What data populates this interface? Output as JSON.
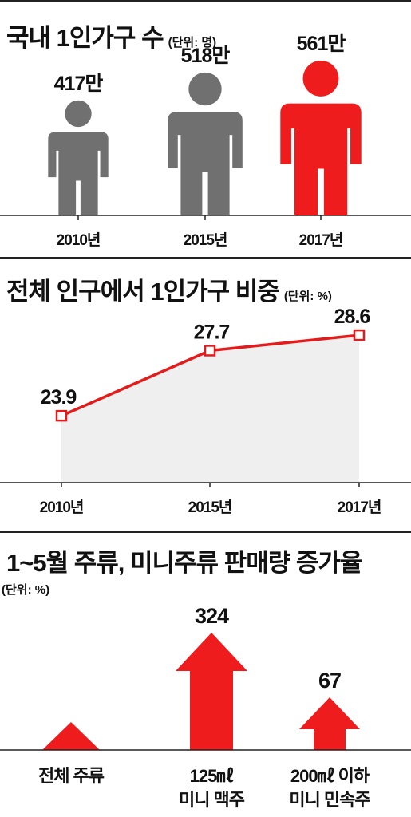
{
  "panels": {
    "households": {
      "title": "국내 1인가구 수",
      "unit": "(단위: 명)",
      "chart_data": {
        "type": "bar",
        "title": "국내 1인가구 수",
        "unit": "(단위: 명)",
        "categories": [
          "2010년",
          "2015년",
          "2017년"
        ],
        "value_labels": [
          "417만",
          "518만",
          "561만"
        ],
        "values": [
          4170000,
          5180000,
          5610000
        ],
        "colors": [
          "#707070",
          "#707070",
          "#ee1c1c"
        ]
      }
    },
    "ratio": {
      "title": "전체 인구에서 1인가구 비중",
      "unit": "(단위: %)",
      "chart_data": {
        "type": "area",
        "title": "전체 인구에서 1인가구 비중",
        "unit": "(단위: %)",
        "categories": [
          "2010년",
          "2015년",
          "2017년"
        ],
        "values": [
          23.9,
          27.7,
          28.6
        ],
        "ylim": [
          20,
          30
        ],
        "colors": {
          "line": "#e31b1b",
          "fill": "#efefef"
        }
      }
    },
    "alcohol": {
      "title": "1~5월 주류, 미니주류 판매량 증가율",
      "unit": "(단위: %)",
      "chart_data": {
        "type": "bar",
        "title": "1~5월 주류, 미니주류 판매량 증가율",
        "unit": "(단위: %)",
        "categories": [
          [
            "전체 주류"
          ],
          [
            "125㎖",
            "미니 맥주"
          ],
          [
            "200㎖ 이하",
            "미니 민속주"
          ]
        ],
        "value_labels": [
          "",
          "324",
          "67"
        ],
        "values": [
          null,
          324,
          67
        ],
        "colors": {
          "arrow": "#ee1c1c"
        }
      }
    }
  }
}
